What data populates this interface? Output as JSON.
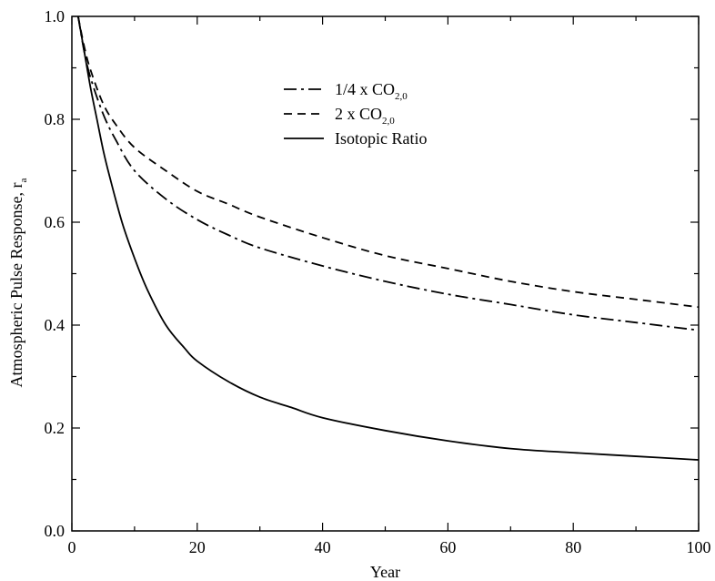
{
  "chart_data": {
    "type": "line",
    "xlabel": "Year",
    "ylabel": "Atmospheric Pulse Response, r",
    "ylabel_subscript": "a",
    "xlim": [
      0,
      100
    ],
    "ylim": [
      0,
      1.0
    ],
    "xticks": [
      0,
      20,
      40,
      60,
      80,
      100
    ],
    "xtick_labels": [
      "0",
      "20",
      "40",
      "60",
      "80",
      "100"
    ],
    "yticks": [
      0,
      0.2,
      0.4,
      0.6,
      0.8,
      1.0
    ],
    "ytick_labels": [
      "0.0",
      "0.2",
      "0.4",
      "0.6",
      "0.8",
      "1.0"
    ],
    "grid": false,
    "legend_position": "top-center",
    "series": [
      {
        "legend_prefix": "1/4 x CO",
        "legend_sub": "2,0",
        "style": "dash-dot",
        "color": "#000000",
        "x": [
          1,
          2,
          3,
          5,
          7,
          10,
          15,
          20,
          25,
          30,
          40,
          50,
          60,
          70,
          80,
          90,
          100
        ],
        "y": [
          1.0,
          0.93,
          0.88,
          0.81,
          0.76,
          0.7,
          0.645,
          0.605,
          0.575,
          0.55,
          0.515,
          0.485,
          0.46,
          0.44,
          0.42,
          0.405,
          0.39
        ]
      },
      {
        "legend_prefix": "2 x CO",
        "legend_sub": "2,0",
        "style": "dashed",
        "color": "#000000",
        "x": [
          1,
          2,
          3,
          5,
          7,
          10,
          15,
          20,
          25,
          30,
          40,
          50,
          60,
          70,
          80,
          90,
          100
        ],
        "y": [
          1.0,
          0.94,
          0.895,
          0.83,
          0.79,
          0.745,
          0.7,
          0.66,
          0.635,
          0.61,
          0.57,
          0.535,
          0.51,
          0.485,
          0.465,
          0.45,
          0.435
        ]
      },
      {
        "legend_prefix": "Isotopic Ratio",
        "legend_sub": "",
        "style": "solid",
        "color": "#000000",
        "x": [
          1,
          2,
          3,
          4,
          5,
          6,
          8,
          10,
          12,
          15,
          18,
          20,
          25,
          30,
          35,
          40,
          50,
          60,
          70,
          80,
          90,
          100
        ],
        "y": [
          1.0,
          0.93,
          0.86,
          0.8,
          0.74,
          0.69,
          0.6,
          0.53,
          0.47,
          0.4,
          0.355,
          0.33,
          0.29,
          0.26,
          0.24,
          0.22,
          0.195,
          0.175,
          0.16,
          0.152,
          0.145,
          0.138
        ]
      }
    ]
  }
}
